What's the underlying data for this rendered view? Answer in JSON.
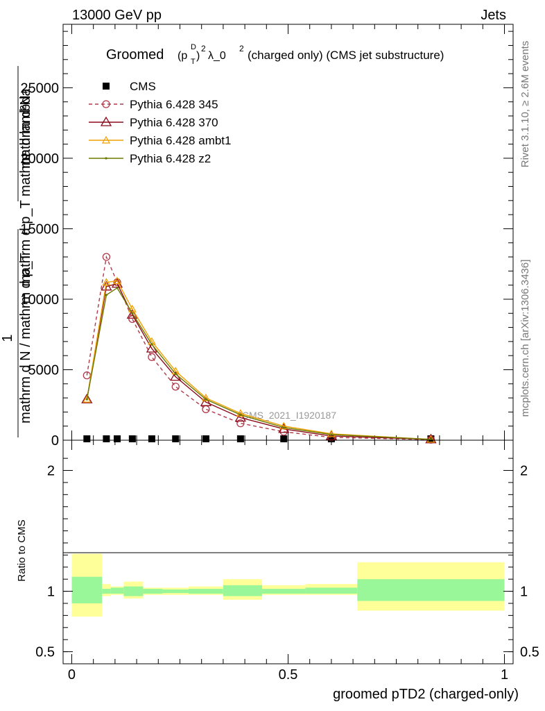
{
  "header": {
    "left": "13000 GeV pp",
    "right": "Jets"
  },
  "side": {
    "rivet": "Rivet 3.1.10, ≥ 2.6M events",
    "mcplots": "mcplots.cern.ch [arXiv:1306.3436]"
  },
  "main_plot": {
    "title_groomed": "Groomed",
    "title_rest": "λ_0",
    "title_tail": "(charged only) (CMS jet substructure)",
    "ylabel_top": "mathrm d²N",
    "ylabel_mid": "mathrm d p_T mathrm d lambda",
    "ylabel_one": "1",
    "ylabel_bottom": "mathrm d N / mathrm d p_T",
    "watermark": "CMS_2021_I1920187"
  },
  "ratio_plot": {
    "ylabel": "Ratio to CMS"
  },
  "colors": {
    "cms": "#000000",
    "p345": "#b0394a",
    "p370": "#8b0a1a",
    "ambt1": "#f0a000",
    "z2": "#6b7a00",
    "band_inner": "#99f799",
    "band_outer": "#ffff99"
  },
  "chart_data": [
    {
      "type": "line",
      "title": "Groomed (p_T^D)^2 λ_0^2 (charged only) (CMS jet substructure)",
      "xlabel": "groomed pTD2 (charged-only)",
      "ylabel": "1/(mathrm d N / mathrm d p_T) mathrm d²N/(mathrm d p_T mathrm d lambda)",
      "xlim": [
        -0.02,
        1.02
      ],
      "ylim": [
        0,
        29500
      ],
      "y_ticks": [
        0,
        5000,
        10000,
        15000,
        20000,
        25000
      ],
      "y_tick_labels": [
        "0",
        "5000",
        "10000",
        "15000",
        "20000",
        "25000"
      ],
      "legend_position": "top-left",
      "x": [
        0.035,
        0.08,
        0.105,
        0.14,
        0.185,
        0.24,
        0.31,
        0.39,
        0.49,
        0.6,
        0.83
      ],
      "series": [
        {
          "name": "CMS",
          "marker": "square",
          "values": [
            0,
            0,
            0,
            0,
            0,
            0,
            0,
            0,
            0,
            0,
            0
          ]
        },
        {
          "name": "Pythia 6.428 345",
          "marker": "circle",
          "dashed": true,
          "values": [
            4600,
            13000,
            11200,
            8600,
            5900,
            3800,
            2200,
            1200,
            600,
            200,
            40
          ]
        },
        {
          "name": "Pythia 6.428 370",
          "marker": "triangle",
          "values": [
            2900,
            10900,
            11100,
            8900,
            6500,
            4500,
            2700,
            1600,
            800,
            300,
            60
          ]
        },
        {
          "name": "Pythia 6.428 ambt1",
          "marker": "triangle-small",
          "values": [
            2900,
            11200,
            11300,
            9300,
            7000,
            4900,
            3000,
            1900,
            1000,
            450,
            60
          ]
        },
        {
          "name": "Pythia 6.428 z2",
          "marker": "dot",
          "values": [
            2900,
            10300,
            10800,
            9000,
            6800,
            4700,
            2900,
            1800,
            900,
            400,
            60
          ]
        }
      ]
    },
    {
      "type": "area",
      "ylabel": "Ratio to CMS",
      "xlim": [
        -0.02,
        1.02
      ],
      "ylim": [
        0.4,
        2.25
      ],
      "y_ticks": [
        0.5,
        1,
        2
      ],
      "y_tick_labels": [
        "0.5",
        "1",
        "2"
      ],
      "x_ticks": [
        0,
        0.5,
        1
      ],
      "x_tick_labels": [
        "0",
        "0.5",
        "1"
      ],
      "reference_line": 1,
      "bins": [
        0,
        0.07,
        0.09,
        0.12,
        0.165,
        0.21,
        0.27,
        0.35,
        0.44,
        0.54,
        0.66,
        1.0
      ],
      "inner_band": [
        [
          0.9,
          1.12
        ],
        [
          0.98,
          1.02
        ],
        [
          0.98,
          1.03
        ],
        [
          0.96,
          1.04
        ],
        [
          0.98,
          1.02
        ],
        [
          0.985,
          1.015
        ],
        [
          0.98,
          1.02
        ],
        [
          0.96,
          1.05
        ],
        [
          0.98,
          1.02
        ],
        [
          0.98,
          1.03
        ],
        [
          0.92,
          1.1
        ]
      ],
      "outer_band": [
        [
          0.79,
          1.31
        ],
        [
          0.96,
          1.06
        ],
        [
          0.97,
          1.04
        ],
        [
          0.94,
          1.08
        ],
        [
          0.97,
          1.03
        ],
        [
          0.97,
          1.03
        ],
        [
          0.97,
          1.04
        ],
        [
          0.93,
          1.1
        ],
        [
          0.97,
          1.05
        ],
        [
          0.97,
          1.06
        ],
        [
          0.84,
          1.24
        ]
      ]
    }
  ]
}
